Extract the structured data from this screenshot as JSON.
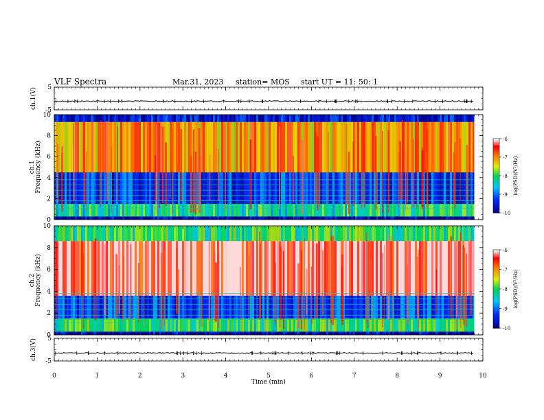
{
  "header": {
    "title": "VLF Spectra",
    "date": "Mar.31, 2023",
    "station": "station= MOS",
    "start": "start UT =   11: 50: 1"
  },
  "chart_data": [
    {
      "type": "line",
      "panel": "ch1-waveform",
      "ylabel": "ch.1(V)",
      "ylim": [
        -5,
        5
      ],
      "yticks": [
        "5",
        "-5"
      ],
      "x": [
        0,
        9.8
      ],
      "values": [
        -1.2,
        -1.2
      ],
      "grid": false
    },
    {
      "type": "heatmap",
      "panel": "ch1-spectrogram",
      "ylabel": "ch.1\nFrequency (kHz)",
      "ylim": [
        0,
        10
      ],
      "yticks": [
        "0",
        "2",
        "4",
        "6",
        "8",
        "10"
      ],
      "xlim": [
        0,
        9.8
      ],
      "colorbar": {
        "label": "log(PSD)(V²/Hz)",
        "ticks": [
          "-6",
          "-7",
          "-8",
          "-9",
          "-10"
        ],
        "range": [
          -10,
          -6
        ]
      },
      "bands": [
        {
          "f_from": 0,
          "f_to": 0.3,
          "level": -9.8
        },
        {
          "f_from": 0.3,
          "f_to": 1.5,
          "level": -8.2
        },
        {
          "f_from": 1.5,
          "f_to": 4.5,
          "level": -9.2
        },
        {
          "f_from": 4.5,
          "f_to": 9.3,
          "level": -7.0
        },
        {
          "f_from": 9.3,
          "f_to": 10,
          "level": -9.6
        }
      ]
    },
    {
      "type": "heatmap",
      "panel": "ch2-spectrogram",
      "ylabel": "ch.2\nFrequency (kHz)",
      "ylim": [
        0,
        10
      ],
      "yticks": [
        "0",
        "2",
        "4",
        "6",
        "8",
        "10"
      ],
      "xlim": [
        0,
        9.8
      ],
      "colorbar": {
        "label": "log(PSD)(V²/Hz)",
        "ticks": [
          "-6",
          "-7",
          "-8",
          "-9",
          "-10"
        ],
        "range": [
          -10,
          -6
        ]
      },
      "bands": [
        {
          "f_from": 0,
          "f_to": 0.3,
          "level": -9.8
        },
        {
          "f_from": 0.3,
          "f_to": 1.5,
          "level": -8.0
        },
        {
          "f_from": 1.5,
          "f_to": 3.6,
          "level": -9.2
        },
        {
          "f_from": 3.6,
          "f_to": 8.6,
          "level": -6.2
        },
        {
          "f_from": 8.6,
          "f_to": 10,
          "level": -8.0
        }
      ]
    },
    {
      "type": "line",
      "panel": "ch3-waveform",
      "ylabel": "ch.3(V)",
      "ylim": [
        -5,
        5
      ],
      "yticks": [
        "5",
        "-5"
      ],
      "x": [
        0,
        9.8
      ],
      "values": [
        -1.5,
        -1.5
      ],
      "grid": false
    }
  ],
  "xaxis": {
    "label": "Time (min)",
    "ticks": [
      "0",
      "1",
      "2",
      "3",
      "4",
      "5",
      "6",
      "7",
      "8",
      "9",
      "10"
    ],
    "xlim": [
      0,
      10
    ]
  }
}
